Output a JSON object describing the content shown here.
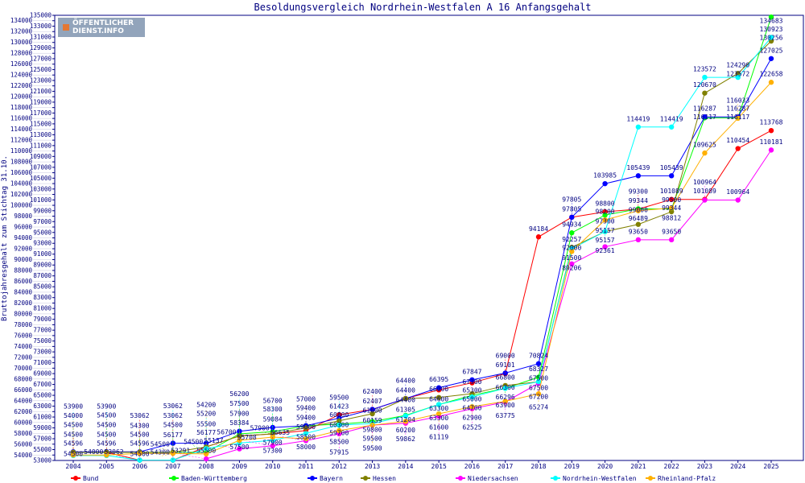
{
  "logo_text": [
    "ÖFFENTLICHER",
    "DIENST.INFO"
  ],
  "chart_data": {
    "type": "line",
    "title": "Besoldungsvergleich Nordrhein-Westfalen A 16 Anfangsgehalt",
    "xlabel": "",
    "ylabel": "Bruttojahresgehalt zum Stichtag 31.10.",
    "ylim": [
      53000,
      135000
    ],
    "ytick_step": 1000,
    "grid": false,
    "legend_position": "bottom",
    "x": [
      "2004",
      "2005",
      "2006",
      "2007",
      "2008",
      "2009",
      "2010",
      "2011",
      "2012",
      "2013",
      "2014",
      "2015",
      "2016",
      "2017",
      "2018",
      "2019",
      "2020",
      "2021",
      "2022",
      "2023",
      "2024",
      "2025"
    ],
    "series": [
      {
        "name": "Bund",
        "color": "#ff0000",
        "values": [
          54500,
          54500,
          53062,
          53062,
          55500,
          57500,
          57900,
          58500,
          61423,
          62400,
          64400,
          66000,
          67300,
          69000,
          94184,
          97805,
          98800,
          99300,
          101089,
          101089,
          110454,
          113768
        ]
      },
      {
        "name": "Baden-Württemberg",
        "color": "#00ff00",
        "values": [
          54500,
          54500,
          54500,
          54500,
          54500,
          57900,
          58300,
          59400,
          59700,
          60159,
          61305,
          63300,
          65000,
          66296,
          68327,
          94934,
          98200,
          99344,
          99344,
          116117,
          116117,
          134683
        ]
      },
      {
        "name": "Bayern",
        "color": "#0000ff",
        "values": [
          54596,
          54596,
          54596,
          56177,
          56177,
          58384,
          59084,
          59400,
          60800,
          62407,
          64400,
          66395,
          67847,
          69101,
          70824,
          97805,
          103985,
          105439,
          105439,
          116287,
          116287,
          127025
        ]
      },
      {
        "name": "Hessen",
        "color": "#808000",
        "values": [
          54500,
          54500,
          54500,
          54500,
          55500,
          57500,
          57900,
          59000,
          60300,
          61600,
          64400,
          64600,
          65300,
          66800,
          67500,
          92257,
          95157,
          96489,
          98812,
          120670,
          124290,
          130256
        ]
      },
      {
        "name": "Niedersachsen",
        "color": "#ff00ff",
        "values": [
          null,
          null,
          null,
          null,
          53291,
          55137,
          55708,
          56635,
          57915,
          59500,
          59862,
          61119,
          62525,
          63775,
          67200,
          89206,
          92361,
          93650,
          93650,
          100964,
          100964,
          110181
        ]
      },
      {
        "name": "Nordrhein-Westfalen",
        "color": "#00ffff",
        "values": [
          53900,
          53900,
          53062,
          53062,
          55200,
          56200,
          56700,
          58000,
          59500,
          59800,
          61204,
          63300,
          64700,
          66300,
          67500,
          92000,
          95157,
          114419,
          114419,
          123572,
          123572,
          130923
        ]
      },
      {
        "name": "Rheinland-Pfalz",
        "color": "#ffb000",
        "values": [
          54000,
          54000,
          54300,
          54300,
          54200,
          56700,
          57300,
          57000,
          58500,
          59500,
          60200,
          61600,
          62900,
          63900,
          65274,
          91500,
          97300,
          99000,
          99500,
          109625,
          116033,
          122658
        ]
      }
    ]
  }
}
